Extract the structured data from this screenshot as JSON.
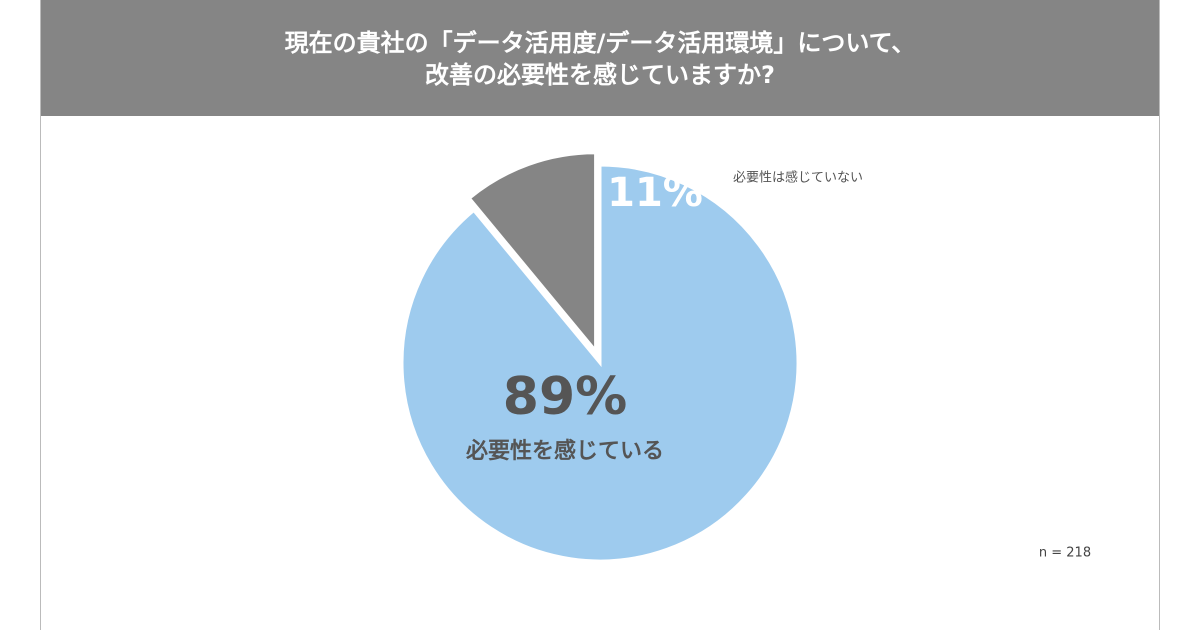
{
  "chart_data": {
    "type": "pie",
    "title": [
      "現在の貴社の「データ活用度/データ活用環境」について、",
      "改善の必要性を感じていますか?"
    ],
    "categories": [
      "必要性を感じている",
      "必要性は感じていない"
    ],
    "values": [
      89,
      11
    ],
    "value_labels": [
      "89%",
      "11%"
    ],
    "colors": [
      "#9ecbee",
      "#858585"
    ],
    "note": "n = 218"
  }
}
